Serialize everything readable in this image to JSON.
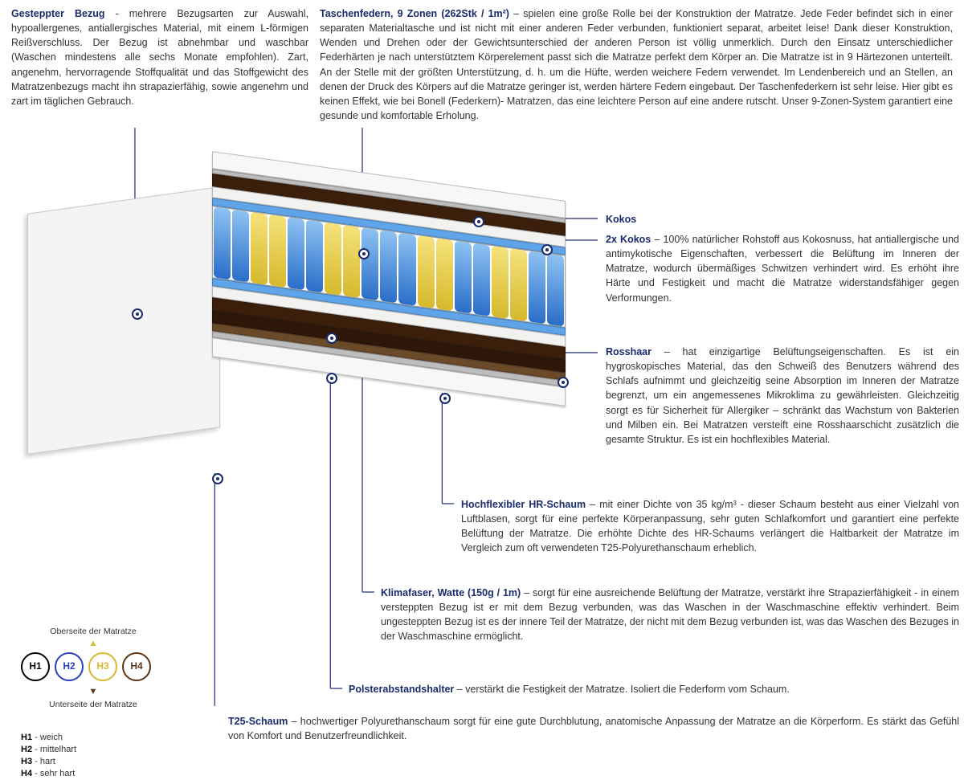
{
  "top_left": {
    "title": "Gesteppter Bezug",
    "bullet": " - ",
    "text": "mehrere Bezugsarten zur Auswahl, hypoallergenes, antiallergisches Material, mit einem L-förmigen Reißverschluss. Der Bezug ist abnehmbar und waschbar (Waschen mindestens alle sechs Monate empfohlen). Zart, angenehm, hervorragende Stoffqualität und das Stoffgewicht des Matratzenbezugs macht ihn strapazierfähig, sowie angenehm und zart im täglichen Gebrauch."
  },
  "top_right": {
    "title": "Taschenfedern, 9 Zonen (262Stk / 1m²)",
    "text": " – spielen eine große Rolle bei der Konstruktion der Matratze. Jede Feder befindet sich in einer separaten Materialtasche und ist nicht mit einer anderen Feder verbunden, funktioniert separat, arbeitet leise! Dank dieser Konstruktion, Wenden und Drehen oder der Gewichtsunterschied der anderen Person ist völlig unmerklich. Durch den Einsatz unterschiedlicher Federhärten je nach unterstütztem Körperelement passt sich die Matratze perfekt dem Körper an. Die Matratze ist in 9 Härtezonen unterteilt. An der Stelle mit der größten Unterstützung, d. h. um die Hüfte, werden weichere Federn verwendet. Im Lendenbereich und an Stellen, an denen der Druck des Körpers auf die Matratze geringer ist, werden härtere Federn eingebaut. Der Taschenfederkern ist sehr leise. Hier gibt es keinen Effekt, wie bei Bonell (Federkern)- Matratzen, das eine leichtere Person auf eine andere rutscht. Unser 9-Zonen-System garantiert eine gesunde und komfortable Erholung."
  },
  "callouts": {
    "kokos_label": "Kokos",
    "kokos2_title": "2x Kokos",
    "kokos2_text": " – 100% natürlicher Rohstoff aus Kokosnuss, hat antiallergische und antimykotische Eigenschaften, verbessert die Belüftung im Inneren der Matratze, wodurch übermäßiges Schwitzen verhindert wird. Es erhöht ihre Härte und Festigkeit und macht die Matratze widerstandsfähiger gegen Verformungen.",
    "rosshaar_title": "Rosshaar",
    "rosshaar_text": " – hat einzigartige Belüftungseigenschaften. Es ist ein hygroskopisches Material, das den Schweiß des Benutzers während des Schlafs aufnimmt und gleichzeitig seine Absorption im Inneren der Matratze begrenzt, um ein angemessenes Mikroklima zu gewährleisten. Gleichzeitig sorgt es für Sicherheit für Allergiker – schränkt das Wachstum von Bakterien und Milben ein. Bei Matratzen versteift eine Rosshaarschicht zusätzlich die gesamte Struktur. Es ist ein hochflexibles Material.",
    "hrschaum_title": "Hochflexibler HR-Schaum",
    "hrschaum_text": " – mit einer Dichte von 35 kg/m³ - dieser Schaum besteht aus einer Vielzahl von Luftblasen, sorgt für eine perfekte Körperanpassung, sehr guten Schlafkomfort und garantiert eine perfekte Belüftung der Matratze. Die erhöhte Dichte des HR-Schaums verlängert die Haltbarkeit der Matratze im Vergleich zum oft verwendeten T25-Polyurethanschaum erheblich.",
    "klima_title": "Klimafaser, Watte (150g / 1m)",
    "klima_text": " – sorgt für eine ausreichende Belüftung der Matratze, verstärkt ihre Strapazierfähigkeit - in einem versteppten Bezug ist er mit dem Bezug verbunden, was das Waschen in der Waschmaschine effektiv verhindert. Beim ungesteppten Bezug ist es der innere Teil der Matratze, der nicht mit dem Bezug verbunden ist, was das Waschen des Bezuges in der Waschmaschine ermöglicht.",
    "polster_title": "Polsterabstandshalter",
    "polster_text": " – verstärkt die Festigkeit der Matratze. Isoliert die Federform vom Schaum.",
    "t25_title": "T25-Schaum",
    "t25_text": " – hochwertiger Polyurethanschaum sorgt für eine gute Durchblutung, anatomische Anpassung der Matratze an die Körperform. Es stärkt das Gefühl von Komfort und Benutzerfreundlichkeit."
  },
  "legend": {
    "top_label": "Oberseite der Matratze",
    "bottom_label": "Unterseite der Matratze",
    "h1": "H1",
    "h2": "H2",
    "h3": "H3",
    "h4": "H4",
    "d1b": "H1",
    "d1": " - weich",
    "d2b": "H2",
    "d2": " - mittelhart",
    "d3b": "H3",
    "d3": " - hart",
    "d4b": "H4",
    "d4": " - sehr hart"
  },
  "styling": {
    "title_color": "#1a2b6d",
    "text_color": "#333333",
    "connector_color": "#1a2b6d",
    "layer_colors": {
      "cover": "#f7f7f5",
      "wadding": "#bdbdbd",
      "coco": "#3b1f0b",
      "foam_white": "#f2f2f0",
      "spacer_blue": "#5fa4e8",
      "spring_blue": "#2a6ec9",
      "spring_yellow": "#d6b92c",
      "rosshaar": "#6b4a2a"
    },
    "hardness_colors": {
      "H1": "#000000",
      "H2": "#2a3fc2",
      "H3": "#d6b92c",
      "H4": "#5b3515"
    },
    "spring_pattern": [
      "b",
      "b",
      "y",
      "y",
      "b",
      "b",
      "y",
      "y",
      "b",
      "b",
      "b",
      "y",
      "y",
      "b",
      "b",
      "y",
      "y",
      "b",
      "b"
    ]
  }
}
